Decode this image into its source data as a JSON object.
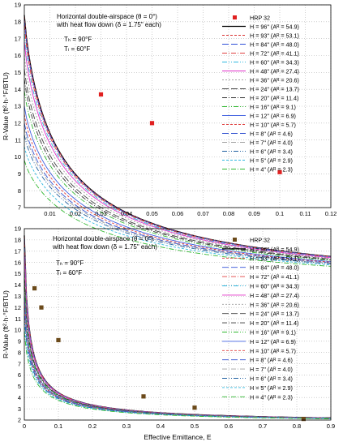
{
  "chart_data": [
    {
      "type": "line",
      "annotation": [
        "Horizontal double-airspace (θ = 0°)",
        "with heat flow down (δ = 1.75\" each)"
      ],
      "conditions": [
        "Tₕ = 90°F",
        "Tₗ = 60°F"
      ],
      "ylabel": "R-Value (ft²·h·°F/BTU)",
      "xlabel": "",
      "xlim": [
        0,
        0.12
      ],
      "ylim": [
        7,
        19
      ],
      "xticks": [
        "0.01",
        "0.02",
        "0.03",
        "0.04",
        "0.05",
        "0.06",
        "0.07",
        "0.08",
        "0.09",
        "0.1",
        "0.11",
        "0.12"
      ],
      "yticks": [
        "7",
        "8",
        "9",
        "10",
        "11",
        "12",
        "13",
        "14",
        "15",
        "16",
        "17",
        "18",
        "19"
      ],
      "grid": true,
      "legend_position": "top-right",
      "markers": {
        "name": "HRP 32",
        "color": "#e02020",
        "points": [
          [
            0.03,
            13.7
          ],
          [
            0.05,
            12.0
          ],
          [
            0.1,
            9.1
          ]
        ]
      },
      "series": [
        {
          "name": "H = 96\" (Aᴿ = 54.9)",
          "color": "#000000",
          "dash": "",
          "r0": 18.4
        },
        {
          "name": "H = 93\" (Aᴿ = 53.1)",
          "color": "#d83030",
          "dash": "3,2",
          "r0": 18.3
        },
        {
          "name": "H = 84\" (Aᴿ = 48.0)",
          "color": "#3050d8",
          "dash": "8,3",
          "r0": 18.1
        },
        {
          "name": "H = 72\" (Aᴿ = 41.1)",
          "color": "#e04040",
          "dash": "6,2,1,2",
          "r0": 17.8
        },
        {
          "name": "H = 60\" (Aᴿ = 34.3)",
          "color": "#30b8e0",
          "dash": "6,2,1,2,1,2",
          "r0": 17.3
        },
        {
          "name": "H = 48\" (Aᴿ = 27.4)",
          "color": "#e030c8",
          "dash": "",
          "r0": 16.8
        },
        {
          "name": "H = 36\" (Aᴿ = 20.6)",
          "color": "#a0a0a0",
          "dash": "2,2",
          "r0": 16.0
        },
        {
          "name": "H = 24\" (Aᴿ = 13.7)",
          "color": "#404040",
          "dash": "8,3",
          "r0": 15.2
        },
        {
          "name": "H = 20\" (Aᴿ = 11.4)",
          "color": "#303030",
          "dash": "6,2,1,2",
          "r0": 14.6
        },
        {
          "name": "H = 16\" (Aᴿ = 9.1)",
          "color": "#30b830",
          "dash": "6,2,1,2,1,2",
          "r0": 13.9
        },
        {
          "name": "H = 12\" (Aᴿ = 6.9)",
          "color": "#4060e0",
          "dash": "",
          "r0": 13.0
        },
        {
          "name": "H = 10\" (Aᴿ = 5.7)",
          "color": "#e04040",
          "dash": "3,2",
          "r0": 12.5
        },
        {
          "name": "H = 8\" (Aᴿ = 4.6)",
          "color": "#3050d0",
          "dash": "8,3",
          "r0": 12.0
        },
        {
          "name": "H = 7\" (Aᴿ = 4.0)",
          "color": "#a0a0a0",
          "dash": "6,2,1,2",
          "r0": 11.7
        },
        {
          "name": "H = 6\" (Aᴿ = 3.4)",
          "color": "#2060a0",
          "dash": "6,2,1,2,1,2",
          "r0": 11.3
        },
        {
          "name": "H = 5\" (Aᴿ = 2.9)",
          "color": "#30b8e0",
          "dash": "3,2",
          "r0": 10.6
        },
        {
          "name": "H = 4\" (Aᴿ = 2.3)",
          "color": "#30b830",
          "dash": "6,2,1,2",
          "r0": 9.8
        }
      ]
    },
    {
      "type": "line",
      "annotation": [
        "Horizontal double-airspace (θ = 0°)",
        "with heat flow down (δ = 1.75\" each)"
      ],
      "conditions": [
        "Tₕ = 90°F",
        "Tₗ = 60°F"
      ],
      "ylabel": "R-Value (ft²·h·°F/BTU)",
      "xlabel": "Effective Emittance, E",
      "xlim": [
        0,
        0.9
      ],
      "ylim": [
        2,
        19
      ],
      "xticks": [
        "0",
        "0.1",
        "0.2",
        "0.3",
        "0.4",
        "0.5",
        "0.6",
        "0.7",
        "0.8",
        "0.9"
      ],
      "yticks": [
        "2",
        "3",
        "4",
        "5",
        "6",
        "7",
        "8",
        "9",
        "10",
        "11",
        "12",
        "13",
        "14",
        "15",
        "16",
        "17",
        "18",
        "19"
      ],
      "grid": true,
      "legend_position": "top-right",
      "markers": {
        "name": "HRP 32",
        "color": "#6b4a1a",
        "points": [
          [
            0.03,
            13.7
          ],
          [
            0.05,
            12.0
          ],
          [
            0.1,
            9.1
          ],
          [
            0.35,
            4.1
          ],
          [
            0.5,
            3.1
          ],
          [
            0.82,
            2.1
          ]
        ]
      }
    }
  ]
}
